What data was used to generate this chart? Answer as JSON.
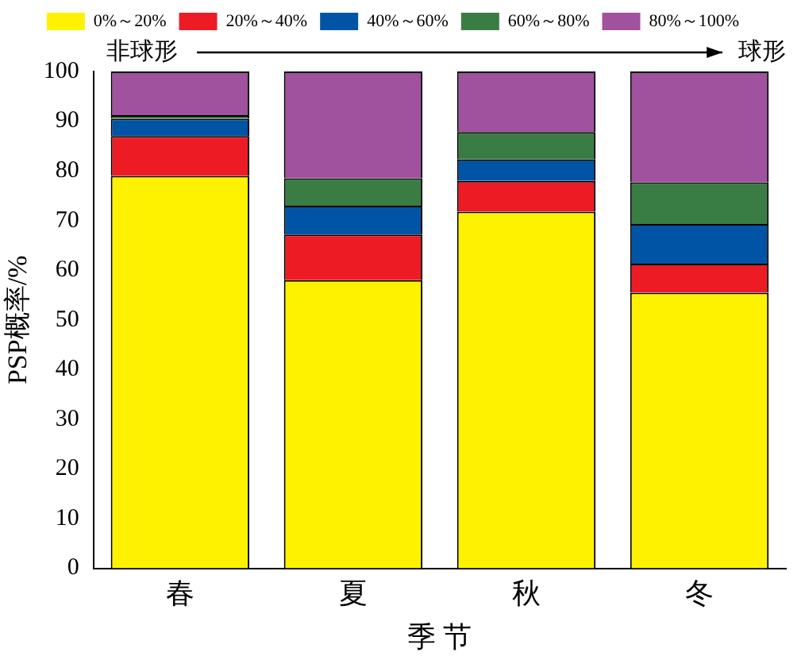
{
  "chart_data": {
    "type": "bar",
    "stacked": true,
    "xlabel": "季 节",
    "ylabel": "PSP概率/%",
    "categories": [
      "春",
      "夏",
      "秋",
      "冬"
    ],
    "series": [
      {
        "name": "0%～20%",
        "color": "#fff200",
        "values": [
          79,
          58,
          71.8,
          55.5
        ]
      },
      {
        "name": "20%～40%",
        "color": "#ed1c24",
        "values": [
          8,
          9.2,
          6.2,
          5.8
        ]
      },
      {
        "name": "40%～60%",
        "color": "#0054a6",
        "values": [
          3.5,
          5.8,
          4.3,
          8
        ]
      },
      {
        "name": "60%～80%",
        "color": "#3a7d44",
        "values": [
          0.7,
          5.5,
          5.5,
          8.4
        ]
      },
      {
        "name": "80%～100%",
        "color": "#a0529e",
        "values": [
          8.8,
          21.5,
          12.2,
          22.3
        ]
      }
    ],
    "ylim": [
      0,
      100
    ],
    "yticks": [
      0,
      10,
      20,
      30,
      40,
      50,
      60,
      70,
      80,
      90,
      100
    ],
    "grid": false,
    "legend": "top",
    "annotations": [
      "非球形",
      "球形"
    ]
  }
}
